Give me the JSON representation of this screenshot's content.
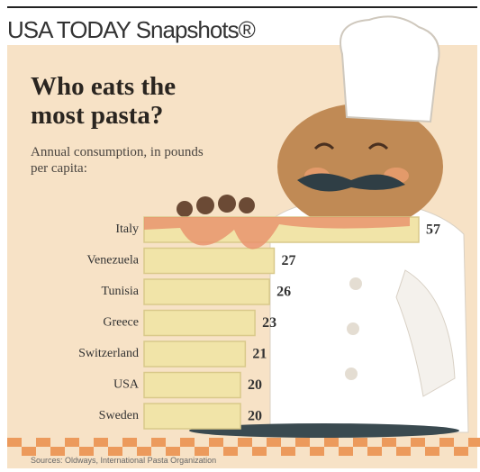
{
  "header": "USA TODAY Snapshots®",
  "chart_data": {
    "type": "bar",
    "orientation": "horizontal",
    "title": "Who eats the most pasta?",
    "subtitle": "Annual consumption, in pounds per capita:",
    "categories": [
      "Italy",
      "Venezuela",
      "Tunisia",
      "Greece",
      "Switzerland",
      "USA",
      "Sweden"
    ],
    "values": [
      57,
      27,
      26,
      23,
      21,
      20,
      20
    ],
    "color": "#f1e4a8",
    "source": "Sources: Oldways, International Pasta Organization"
  }
}
